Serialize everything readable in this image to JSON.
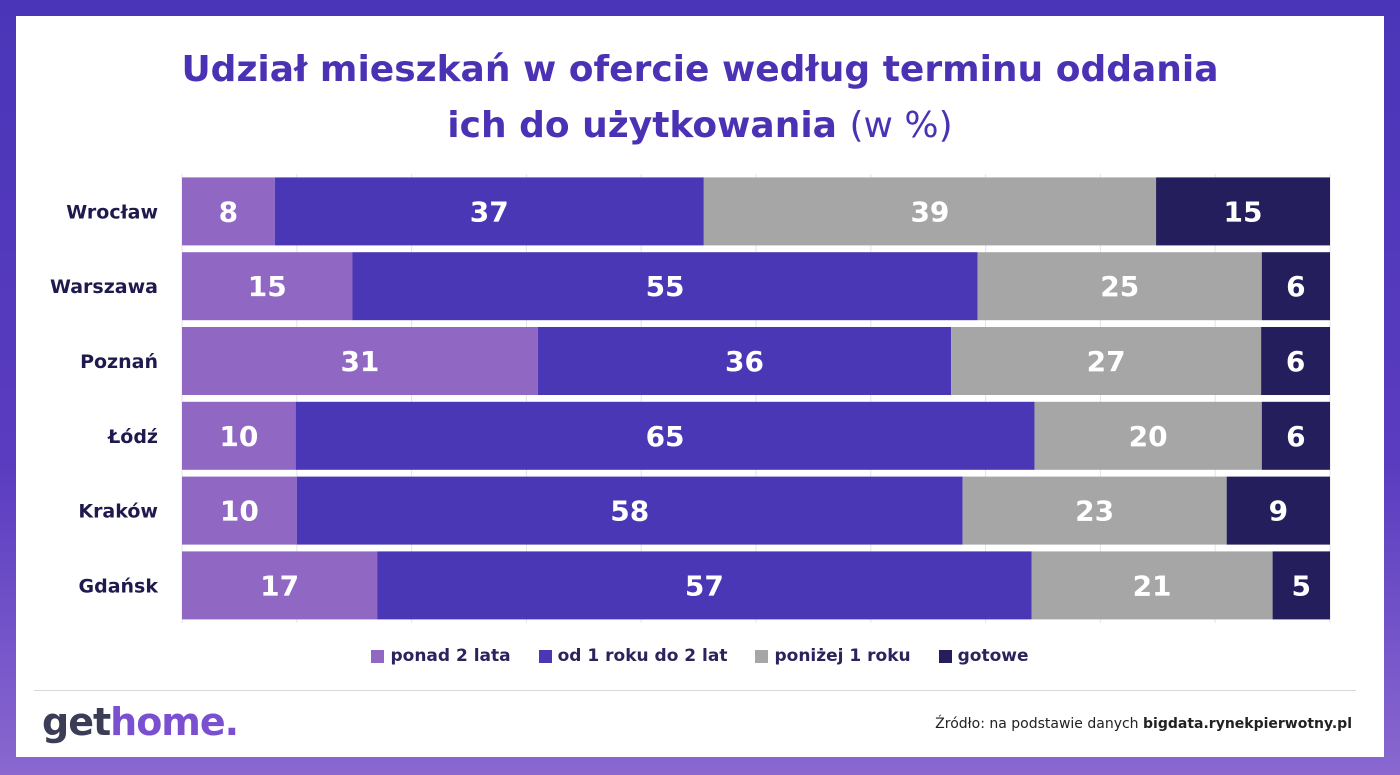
{
  "title": {
    "line1": "Udział mieszkań w ofercie według terminu oddania",
    "line2": "ich do użytkowania",
    "unit": "(w %)"
  },
  "chart_data": {
    "type": "bar",
    "orientation": "horizontal",
    "stacked": true,
    "categories": [
      "Wrocław",
      "Warszawa",
      "Poznań",
      "Łódź",
      "Kraków",
      "Gdańsk"
    ],
    "series": [
      {
        "name": "ponad 2 lata",
        "color": "#9167c4",
        "values": [
          8,
          15,
          31,
          10,
          10,
          17
        ]
      },
      {
        "name": "od 1 roku do 2 lat",
        "color": "#4a37b6",
        "values": [
          37,
          55,
          36,
          65,
          58,
          57
        ]
      },
      {
        "name": "poniżej 1 roku",
        "color": "#a6a6a6",
        "values": [
          39,
          25,
          27,
          20,
          23,
          21
        ]
      },
      {
        "name": "gotowe",
        "color": "#241e5c",
        "values": [
          15,
          6,
          6,
          6,
          9,
          5
        ]
      }
    ],
    "legend_position": "bottom",
    "grid": true
  },
  "brand": {
    "logo_part1": "get",
    "logo_part2": "home."
  },
  "source": {
    "prefix": "Źródło: na podstawie danych ",
    "name": "bigdata.rynekpierwotny.pl"
  }
}
